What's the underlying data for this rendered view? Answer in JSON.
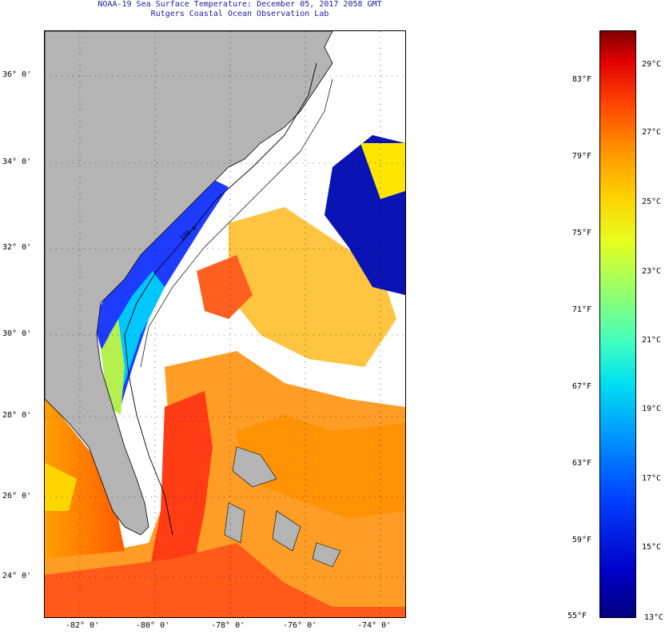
{
  "title": {
    "line1": "NOAA-19 Sea Surface Temperature:  December 05, 2017 2058 GMT",
    "line2": "Rutgers Coastal Ocean Observation Lab"
  },
  "map": {
    "lat_labels": [
      "36° 0'",
      "34° 0'",
      "32° 0'",
      "30° 0'",
      "28° 0'",
      "26° 0'",
      "24° 0'"
    ],
    "lon_labels": [
      "-82° 0'",
      "-80° 0'",
      "-78° 0'",
      "-76° 0'",
      "-74° 0'"
    ],
    "contour_label": "100 m",
    "colors": {
      "land": "#b4b4b4",
      "cloud": "#ffffff",
      "coast": "#000000"
    }
  },
  "colorbar": {
    "fahrenheit_labels": [
      "83°F",
      "79°F",
      "75°F",
      "71°F",
      "67°F",
      "63°F",
      "59°F",
      "55°F"
    ],
    "celsius_labels": [
      "29°C",
      "27°C",
      "25°C",
      "23°C",
      "21°C",
      "19°C",
      "17°C",
      "15°C",
      "13°C"
    ]
  }
}
